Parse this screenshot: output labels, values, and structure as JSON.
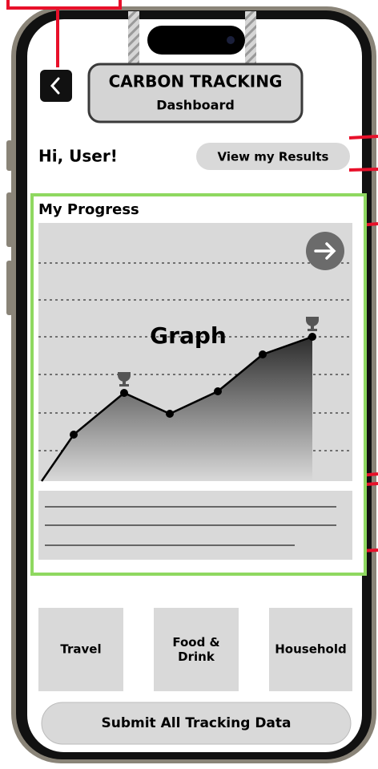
{
  "header": {
    "title": "CARBON TRACKING",
    "subtitle": "Dashboard"
  },
  "greeting": "Hi, User!",
  "results_button": "View my Results",
  "progress": {
    "title": "My Progress",
    "graph_label": "Graph"
  },
  "categories": [
    "Travel",
    "Food & Drink",
    "Household"
  ],
  "submit_button": "Submit All Tracking Data"
}
